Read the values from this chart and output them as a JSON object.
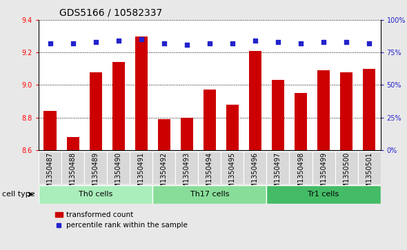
{
  "title": "GDS5166 / 10582337",
  "samples": [
    "GSM1350487",
    "GSM1350488",
    "GSM1350489",
    "GSM1350490",
    "GSM1350491",
    "GSM1350492",
    "GSM1350493",
    "GSM1350494",
    "GSM1350495",
    "GSM1350496",
    "GSM1350497",
    "GSM1350498",
    "GSM1350499",
    "GSM1350500",
    "GSM1350501"
  ],
  "bar_values": [
    8.84,
    8.68,
    9.08,
    9.14,
    9.3,
    8.79,
    8.8,
    8.97,
    8.88,
    9.21,
    9.03,
    8.95,
    9.09,
    9.08,
    9.1
  ],
  "percentile_values": [
    82,
    82,
    83,
    84,
    85,
    82,
    81,
    82,
    82,
    84,
    83,
    82,
    83,
    83,
    82
  ],
  "bar_color": "#cc0000",
  "dot_color": "#2222cc",
  "ylim_left": [
    8.6,
    9.4
  ],
  "ylim_right": [
    0,
    100
  ],
  "yticks_left": [
    8.6,
    8.8,
    9.0,
    9.2,
    9.4
  ],
  "yticks_right": [
    0,
    25,
    50,
    75,
    100
  ],
  "ylabel_right_labels": [
    "0%",
    "25%",
    "50%",
    "75%",
    "100%"
  ],
  "groups": [
    {
      "label": "Th0 cells",
      "start": 0,
      "end": 5,
      "color": "#aaeebb"
    },
    {
      "label": "Th17 cells",
      "start": 5,
      "end": 10,
      "color": "#88dd99"
    },
    {
      "label": "Tr1 cells",
      "start": 10,
      "end": 15,
      "color": "#44bb66"
    }
  ],
  "cell_type_label": "cell type",
  "legend_bar_label": "transformed count",
  "legend_dot_label": "percentile rank within the sample",
  "background_color": "#e8e8e8",
  "plot_bg_color": "#ffffff",
  "xtick_bg_color": "#d8d8d8",
  "title_fontsize": 10,
  "tick_fontsize": 7,
  "bar_width": 0.55
}
